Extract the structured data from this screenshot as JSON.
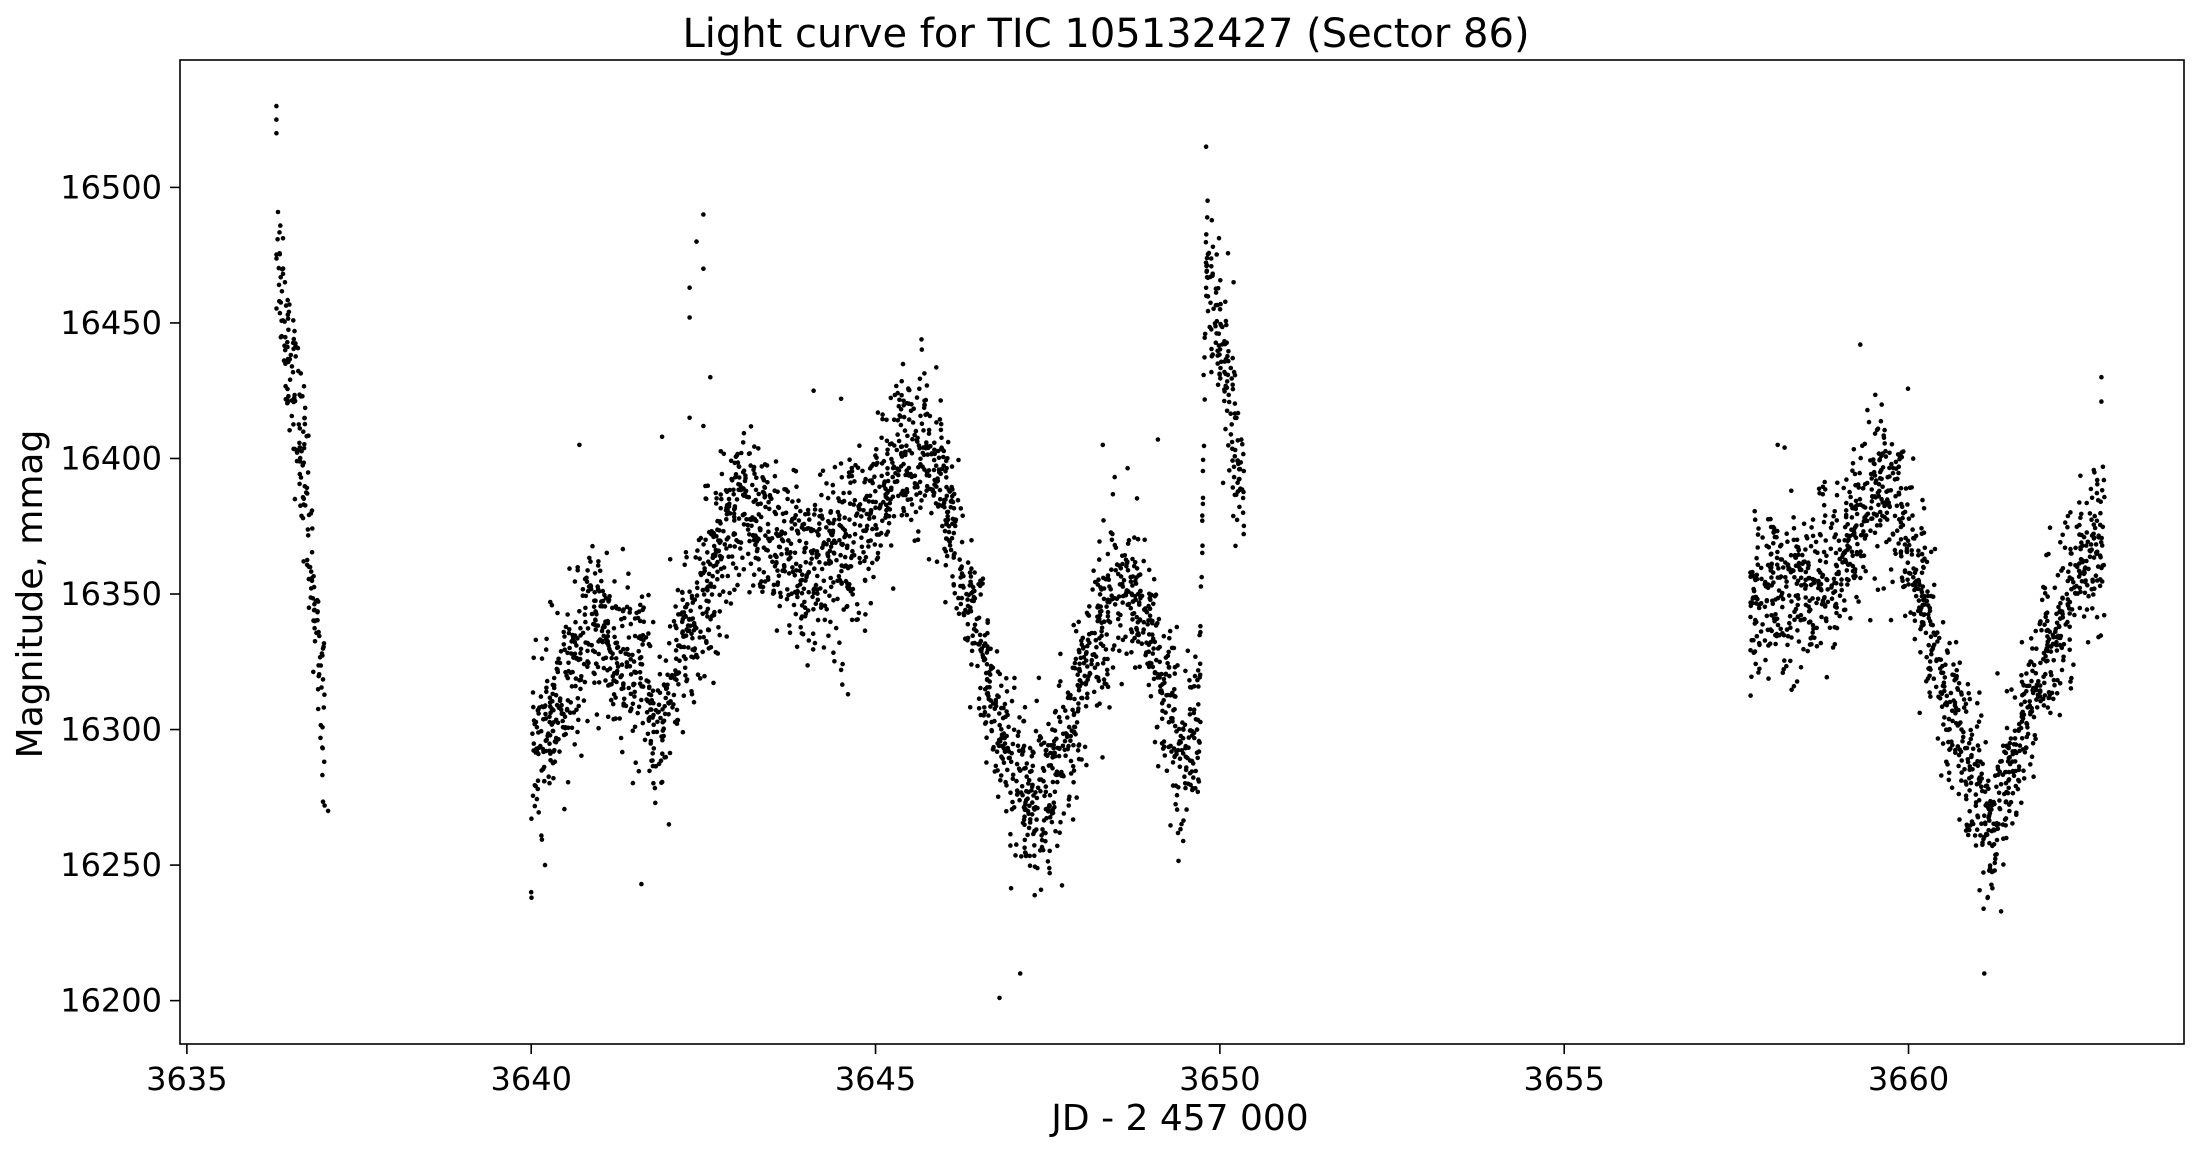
{
  "chart_data": {
    "type": "scatter",
    "title": "Light curve for TIC 105132427 (Sector 86)",
    "xlabel": "JD - 2 457 000",
    "ylabel": "Magnitude, mmag",
    "xlim": [
      3634.9,
      3664.0
    ],
    "ylim": [
      16184,
      16547
    ],
    "y_inverted": false,
    "grid": false,
    "legend": "none",
    "marker_color": "#000000",
    "xticks": [
      3635,
      3640,
      3645,
      3650,
      3655,
      3660
    ],
    "yticks": [
      16200,
      16250,
      16300,
      16350,
      16400,
      16450,
      16500
    ],
    "xtick_labels": [
      "3635",
      "3640",
      "3645",
      "3650",
      "3655",
      "3660"
    ],
    "ytick_labels": [
      "16200",
      "16250",
      "16300",
      "16350",
      "16400",
      "16450",
      "16500"
    ],
    "trend": [
      [
        3636.3,
        16480
      ],
      [
        3636.5,
        16435
      ],
      [
        3636.7,
        16395
      ],
      [
        3636.85,
        16350
      ],
      [
        3637.0,
        16300
      ],
      [
        3640.0,
        16290
      ],
      [
        3640.3,
        16305
      ],
      [
        3640.6,
        16320
      ],
      [
        3641.0,
        16340
      ],
      [
        3641.3,
        16320
      ],
      [
        3641.6,
        16325
      ],
      [
        3641.8,
        16300
      ],
      [
        3643.0,
        16385
      ],
      [
        3643.5,
        16368
      ],
      [
        3644.0,
        16358
      ],
      [
        3644.5,
        16366
      ],
      [
        3645.0,
        16380
      ],
      [
        3645.4,
        16405
      ],
      [
        3645.7,
        16405
      ],
      [
        3646.0,
        16385
      ],
      [
        3646.4,
        16340
      ],
      [
        3646.8,
        16300
      ],
      [
        3647.2,
        16268
      ],
      [
        3647.5,
        16275
      ],
      [
        3647.8,
        16300
      ],
      [
        3648.2,
        16335
      ],
      [
        3648.6,
        16358
      ],
      [
        3648.9,
        16345
      ],
      [
        3649.2,
        16310
      ],
      [
        3649.5,
        16290
      ],
      [
        3649.7,
        16305
      ],
      [
        3649.8,
        16470
      ],
      [
        3650.0,
        16440
      ],
      [
        3650.2,
        16410
      ],
      [
        3650.35,
        16385
      ],
      [
        3657.7,
        16345
      ],
      [
        3658.0,
        16352
      ],
      [
        3658.5,
        16350
      ],
      [
        3659.0,
        16360
      ],
      [
        3659.5,
        16390
      ],
      [
        3659.8,
        16385
      ],
      [
        3660.1,
        16360
      ],
      [
        3660.5,
        16315
      ],
      [
        3660.9,
        16285
      ],
      [
        3661.2,
        16265
      ],
      [
        3661.5,
        16285
      ],
      [
        3661.8,
        16312
      ],
      [
        3662.2,
        16340
      ],
      [
        3662.5,
        16360
      ],
      [
        3662.85,
        16372
      ]
    ],
    "outliers": [
      [
        3636.3,
        16530
      ],
      [
        3636.3,
        16525
      ],
      [
        3636.3,
        16520
      ],
      [
        3637.05,
        16270
      ],
      [
        3637.0,
        16272
      ],
      [
        3640.0,
        16240
      ],
      [
        3640.2,
        16250
      ],
      [
        3640.7,
        16405
      ],
      [
        3641.6,
        16243
      ],
      [
        3642.3,
        16415
      ],
      [
        3642.5,
        16412
      ],
      [
        3641.9,
        16408
      ],
      [
        3642.6,
        16430
      ],
      [
        3642.0,
        16265
      ],
      [
        3646.8,
        16201
      ],
      [
        3647.1,
        16210
      ],
      [
        3648.3,
        16405
      ],
      [
        3649.1,
        16407
      ],
      [
        3649.8,
        16515
      ],
      [
        3650.2,
        16465
      ],
      [
        3659.3,
        16442
      ],
      [
        3661.1,
        16210
      ],
      [
        3662.8,
        16430
      ],
      [
        3662.8,
        16421
      ],
      [
        3644.1,
        16425
      ],
      [
        3644.5,
        16322
      ],
      [
        3644.6,
        16313
      ],
      [
        3644.5,
        16422
      ],
      [
        3658.1,
        16405
      ],
      [
        3658.2,
        16404
      ],
      [
        3642.3,
        16463
      ],
      [
        3642.5,
        16490
      ],
      [
        3642.4,
        16480
      ],
      [
        3642.5,
        16470
      ],
      [
        3642.3,
        16452
      ]
    ],
    "scatter_sd": 15
  }
}
